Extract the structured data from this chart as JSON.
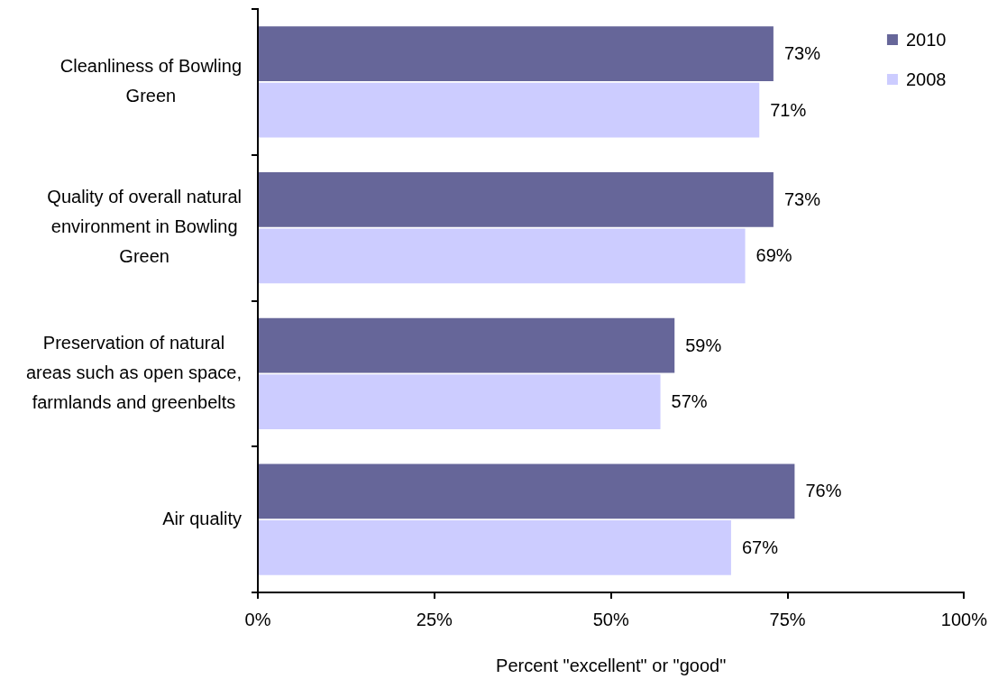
{
  "chart_data": {
    "type": "bar",
    "orientation": "horizontal",
    "categories": [
      "Cleanliness of Bowling Green",
      "Quality of overall natural environment in Bowling Green",
      "Preservation of natural areas such as open space, farmlands and greenbelts",
      "Air quality"
    ],
    "series": [
      {
        "name": "2010",
        "color": "#666699",
        "values": [
          73,
          73,
          59,
          76
        ],
        "value_labels": [
          "73%",
          "73%",
          "59%",
          "76%"
        ]
      },
      {
        "name": "2008",
        "color": "#ccccff",
        "values": [
          71,
          69,
          57,
          67
        ],
        "value_labels": [
          "71%",
          "69%",
          "57%",
          "67%"
        ]
      }
    ],
    "xlabel": "Percent \"excellent\" or \"good\"",
    "xlim": [
      0,
      100
    ],
    "xticks": [
      {
        "value": 0,
        "label": "0%"
      },
      {
        "value": 25,
        "label": "25%"
      },
      {
        "value": 50,
        "label": "50%"
      },
      {
        "value": 75,
        "label": "75%"
      },
      {
        "value": 100,
        "label": "100%"
      }
    ],
    "legend": "top right"
  }
}
